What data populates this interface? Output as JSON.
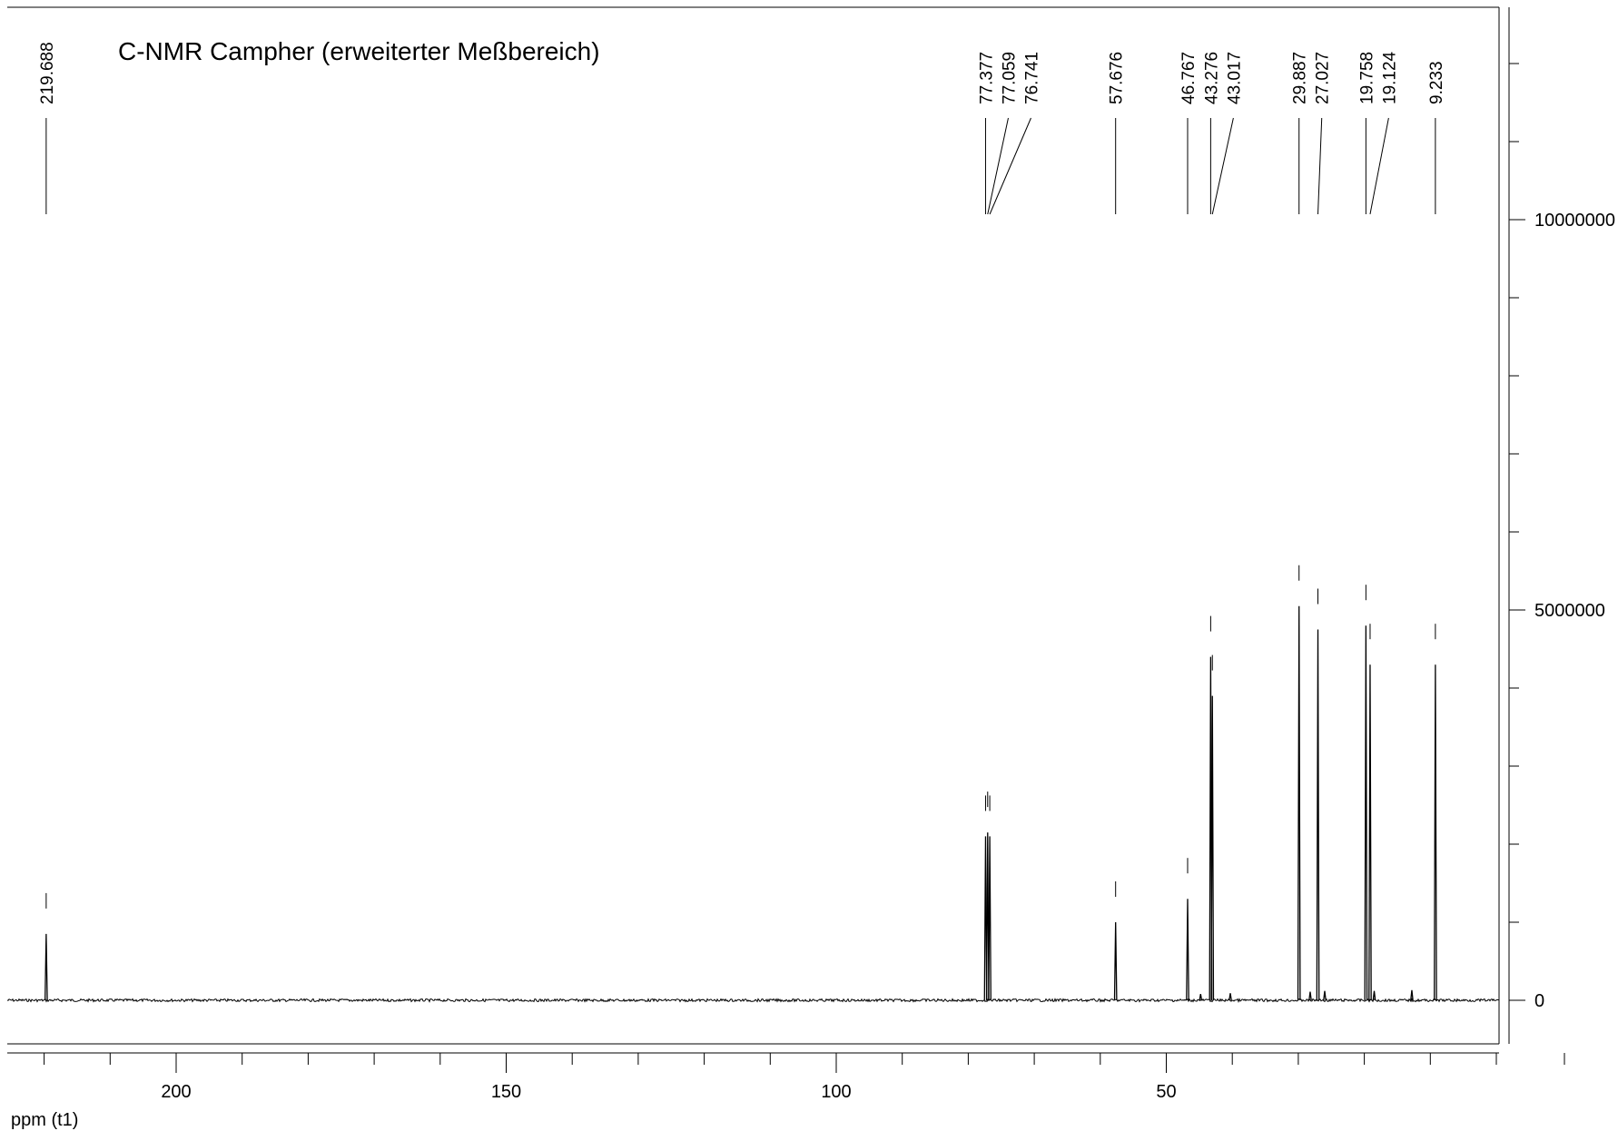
{
  "chart_data": {
    "type": "line",
    "title": "C-NMR Campher (erweiterter Meßbereich)",
    "xlabel": "ppm (t1)",
    "xlim": [
      226.7,
      0
    ],
    "ylim": [
      -800000,
      12500000
    ],
    "x_axis_reversed": true,
    "x_ticks_major": [
      200,
      150,
      100,
      50
    ],
    "x_ticks_minor_step": 10,
    "y_ticks_major": [
      {
        "value": 0,
        "label": "0"
      },
      {
        "value": 5000000,
        "label": "5000000"
      },
      {
        "value": 10000000,
        "label": "10000000"
      }
    ],
    "y_ticks_minor_step": 1000000,
    "peak_labels": [
      "219.688",
      "77.377",
      "77.059",
      "76.741",
      "57.676",
      "46.767",
      "43.276",
      "43.017",
      "29.887",
      "27.027",
      "19.758",
      "19.124",
      "9.233"
    ],
    "peaks": [
      {
        "ppm": 219.688,
        "intensity": 850000
      },
      {
        "ppm": 77.377,
        "intensity": 2100000
      },
      {
        "ppm": 77.059,
        "intensity": 2150000
      },
      {
        "ppm": 76.741,
        "intensity": 2100000
      },
      {
        "ppm": 57.676,
        "intensity": 1000000
      },
      {
        "ppm": 46.767,
        "intensity": 1300000
      },
      {
        "ppm": 43.276,
        "intensity": 4400000
      },
      {
        "ppm": 43.017,
        "intensity": 3900000
      },
      {
        "ppm": 29.887,
        "intensity": 5050000
      },
      {
        "ppm": 27.027,
        "intensity": 4750000
      },
      {
        "ppm": 19.758,
        "intensity": 4800000
      },
      {
        "ppm": 19.124,
        "intensity": 4300000
      },
      {
        "ppm": 9.233,
        "intensity": 4300000
      }
    ],
    "minor_peaks": [
      {
        "ppm": 44.8,
        "intensity": 80000
      },
      {
        "ppm": 40.3,
        "intensity": 90000
      },
      {
        "ppm": 28.2,
        "intensity": 110000
      },
      {
        "ppm": 26.0,
        "intensity": 120000
      },
      {
        "ppm": 18.5,
        "intensity": 120000
      },
      {
        "ppm": 12.8,
        "intensity": 130000
      }
    ],
    "colors": {
      "line": "#000000",
      "background": "#ffffff"
    }
  }
}
